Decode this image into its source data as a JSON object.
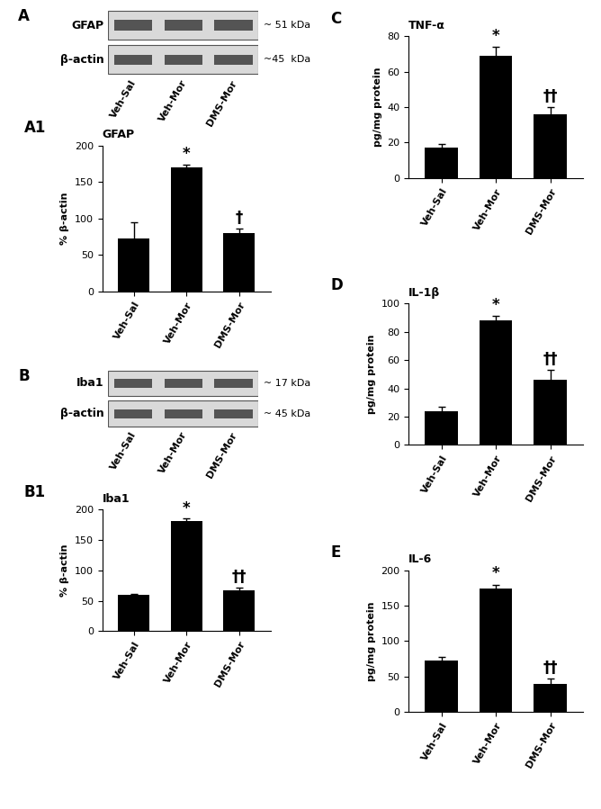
{
  "chart_data": [
    {
      "type": "bar",
      "panel": "A1",
      "title": "GFAP",
      "y_label": "% β-actin",
      "categories": [
        "Veh-Sal",
        "Veh-Mor",
        "DMS-Mor"
      ],
      "values": [
        73,
        170,
        80
      ],
      "errors": [
        22,
        4,
        6
      ],
      "color": "#000000",
      "ylim": [
        0,
        200
      ],
      "yticks": [
        0,
        50,
        100,
        150,
        200
      ],
      "annotations": [
        {
          "category": "Veh-Mor",
          "text": "*"
        },
        {
          "category": "DMS-Mor",
          "text": "†"
        }
      ]
    },
    {
      "type": "bar",
      "panel": "B1",
      "title": "Iba1",
      "y_label": "% β-actin",
      "categories": [
        "Veh-Sal",
        "Veh-Mor",
        "DMS-Mor"
      ],
      "values": [
        60,
        181,
        67
      ],
      "errors": [
        1,
        4,
        5
      ],
      "color": "#000000",
      "ylim": [
        0,
        200
      ],
      "yticks": [
        0,
        50,
        100,
        150,
        200
      ],
      "annotations": [
        {
          "category": "Veh-Mor",
          "text": "*"
        },
        {
          "category": "DMS-Mor",
          "text": "††"
        }
      ]
    },
    {
      "type": "bar",
      "panel": "C",
      "title": "TNF-α",
      "y_label": "pg/mg protein",
      "categories": [
        "Veh-Sal",
        "Veh-Mor",
        "DMS-Mor"
      ],
      "values": [
        17,
        69,
        36
      ],
      "errors": [
        2,
        5,
        4
      ],
      "color": "#000000",
      "ylim": [
        0,
        80
      ],
      "yticks": [
        0,
        20,
        40,
        60,
        80
      ],
      "annotations": [
        {
          "category": "Veh-Mor",
          "text": "*"
        },
        {
          "category": "DMS-Mor",
          "text": "††"
        }
      ]
    },
    {
      "type": "bar",
      "panel": "D",
      "title": "IL-1β",
      "y_label": "pg/mg protein",
      "categories": [
        "Veh-Sal",
        "Veh-Mor",
        "DMS-Mor"
      ],
      "values": [
        24,
        88,
        46
      ],
      "errors": [
        3,
        3,
        7
      ],
      "color": "#000000",
      "ylim": [
        0,
        100
      ],
      "yticks": [
        0,
        20,
        40,
        60,
        80,
        100
      ],
      "annotations": [
        {
          "category": "Veh-Mor",
          "text": "*"
        },
        {
          "category": "DMS-Mor",
          "text": "††"
        }
      ]
    },
    {
      "type": "bar",
      "panel": "E",
      "title": "IL-6",
      "y_label": "pg/mg protein",
      "categories": [
        "Veh-Sal",
        "Veh-Mor",
        "DMS-Mor"
      ],
      "values": [
        72,
        174,
        40
      ],
      "errors": [
        6,
        6,
        7
      ],
      "color": "#000000",
      "ylim": [
        0,
        200
      ],
      "yticks": [
        0,
        50,
        100,
        150,
        200
      ],
      "annotations": [
        {
          "category": "Veh-Mor",
          "text": "*"
        },
        {
          "category": "DMS-Mor",
          "text": "††"
        }
      ]
    }
  ],
  "blots": [
    {
      "panel": "A",
      "lanes": [
        "Veh-Sal",
        "Veh-Mor",
        "DMS-Mor"
      ],
      "rows": [
        {
          "label": "GFAP",
          "size": "~ 51 kDa"
        },
        {
          "label": "β-actin",
          "size": "~45  kDa"
        }
      ]
    },
    {
      "panel": "B",
      "lanes": [
        "Veh-Sal",
        "Veh-Mor",
        "DMS-Mor"
      ],
      "rows": [
        {
          "label": "Iba1",
          "size": "~ 17 kDa"
        },
        {
          "label": "β-actin",
          "size": "~ 45 kDa"
        }
      ]
    }
  ]
}
